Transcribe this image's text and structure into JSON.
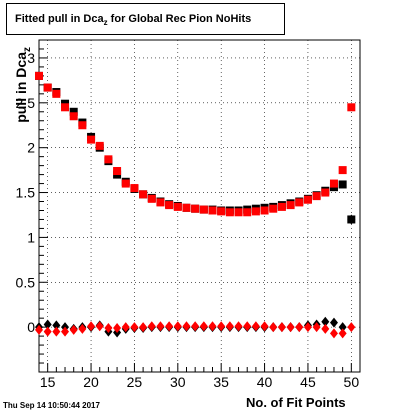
{
  "title": {
    "prefix": "Fitted pull in Dca",
    "sub": "z",
    "suffix": " for Global Rec Pion NoHits"
  },
  "timestamp": "Thu Sep 14 10:50:44 2017",
  "chart_data": {
    "type": "scatter",
    "xlabel": "No. of Fit Points",
    "ylabel": {
      "main": "pull in Dca",
      "sub": "z"
    },
    "xlim": [
      14,
      51
    ],
    "ylim": [
      -0.5,
      3.2
    ],
    "x_ticks": [
      15,
      20,
      25,
      30,
      35,
      40,
      45,
      50
    ],
    "y_ticks": [
      0,
      0.5,
      1,
      1.5,
      2,
      2.5,
      3
    ],
    "grid": true,
    "colors": {
      "black": "#000000",
      "red": "#ff0000"
    },
    "x": [
      14,
      15,
      16,
      17,
      18,
      19,
      20,
      21,
      22,
      23,
      24,
      25,
      26,
      27,
      28,
      29,
      30,
      31,
      32,
      33,
      34,
      35,
      36,
      37,
      38,
      39,
      40,
      41,
      42,
      43,
      44,
      45,
      46,
      47,
      48,
      49,
      50
    ],
    "series": [
      {
        "color": "black",
        "marker": "square",
        "values": [
          2.8,
          2.67,
          2.62,
          2.49,
          2.4,
          2.28,
          2.12,
          2.0,
          1.85,
          1.7,
          1.62,
          1.54,
          1.48,
          1.44,
          1.4,
          1.37,
          1.35,
          1.33,
          1.32,
          1.31,
          1.31,
          1.3,
          1.3,
          1.3,
          1.31,
          1.32,
          1.33,
          1.34,
          1.36,
          1.38,
          1.4,
          1.43,
          1.47,
          1.52,
          1.56,
          1.59,
          1.2
        ]
      },
      {
        "color": "red",
        "marker": "square",
        "values": [
          2.8,
          2.67,
          2.6,
          2.45,
          2.35,
          2.25,
          2.09,
          2.02,
          1.87,
          1.74,
          1.6,
          1.55,
          1.48,
          1.43,
          1.39,
          1.36,
          1.34,
          1.33,
          1.32,
          1.31,
          1.3,
          1.29,
          1.28,
          1.28,
          1.28,
          1.29,
          1.3,
          1.32,
          1.34,
          1.36,
          1.39,
          1.42,
          1.46,
          1.5,
          1.6,
          1.75,
          2.45
        ]
      },
      {
        "color": "black",
        "marker": "diamond",
        "values": [
          0.0,
          0.03,
          0.02,
          0.0,
          -0.02,
          0.0,
          0.0,
          0.02,
          -0.05,
          -0.06,
          -0.02,
          -0.01,
          -0.01,
          0.0,
          0.0,
          0.0,
          0.0,
          0.0,
          0.0,
          0.0,
          0.0,
          0.0,
          0.0,
          0.0,
          0.0,
          0.0,
          0.0,
          0.0,
          0.0,
          0.0,
          0.0,
          0.02,
          0.03,
          0.06,
          0.05,
          0.0,
          1.2
        ]
      },
      {
        "color": "red",
        "marker": "diamond",
        "values": [
          -0.03,
          -0.05,
          -0.05,
          -0.05,
          -0.03,
          -0.02,
          0.01,
          0.01,
          -0.01,
          -0.01,
          0.0,
          0.0,
          0.0,
          0.01,
          0.01,
          0.01,
          0.01,
          0.01,
          0.01,
          0.01,
          0.01,
          0.01,
          0.01,
          0.01,
          0.01,
          0.01,
          0.01,
          0.0,
          0.0,
          0.0,
          0.0,
          0.0,
          0.0,
          -0.02,
          -0.07,
          -0.07,
          0.0
        ]
      }
    ]
  }
}
